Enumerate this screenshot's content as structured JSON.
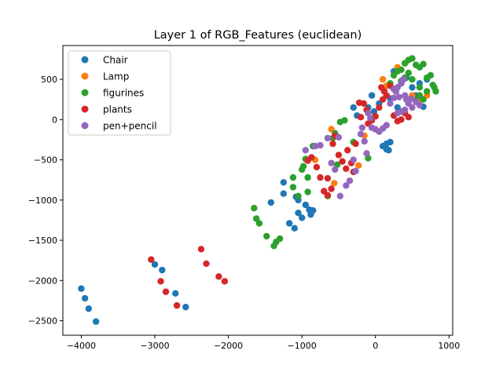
{
  "chart_data": {
    "type": "scatter",
    "title": "Layer 1 of RGB_Features (euclidean)",
    "xlabel": "",
    "ylabel": "",
    "xlim": [
      -4250,
      1050
    ],
    "ylim": [
      -2680,
      920
    ],
    "xticks": [
      -4000,
      -3000,
      -2000,
      -1000,
      0,
      1000
    ],
    "yticks": [
      -2500,
      -2000,
      -1500,
      -1000,
      -500,
      0,
      500
    ],
    "xtick_labels": [
      "−4000",
      "−3000",
      "−2000",
      "−1000",
      "0",
      "1000"
    ],
    "ytick_labels": [
      "−2500",
      "−2000",
      "−1500",
      "−1000",
      "−500",
      "0",
      "500"
    ],
    "grid": false,
    "legend_position": "top-left",
    "series": [
      {
        "name": "Chair",
        "color": "#1f77b4",
        "points": [
          [
            -4000,
            -2100
          ],
          [
            -3950,
            -2220
          ],
          [
            -3900,
            -2350
          ],
          [
            -3800,
            -2510
          ],
          [
            -3000,
            -1800
          ],
          [
            -2900,
            -1870
          ],
          [
            -2720,
            -2160
          ],
          [
            -2580,
            -2330
          ],
          [
            -1420,
            -1030
          ],
          [
            -1250,
            -920
          ],
          [
            -1250,
            -780
          ],
          [
            -1170,
            -1290
          ],
          [
            -1100,
            -1350
          ],
          [
            -1080,
            -960
          ],
          [
            -1050,
            -1000
          ],
          [
            -1050,
            -1160
          ],
          [
            -1000,
            -1220
          ],
          [
            -950,
            -1060
          ],
          [
            -900,
            -1120
          ],
          [
            -880,
            -1180
          ],
          [
            -850,
            -1130
          ],
          [
            -300,
            150
          ],
          [
            -250,
            50
          ],
          [
            -100,
            150
          ],
          [
            -50,
            300
          ],
          [
            -20,
            100
          ],
          [
            50,
            200
          ],
          [
            100,
            -330
          ],
          [
            150,
            -300
          ],
          [
            180,
            -380
          ],
          [
            200,
            -280
          ],
          [
            150,
            -370
          ],
          [
            250,
            600
          ],
          [
            350,
            450
          ],
          [
            420,
            520
          ],
          [
            500,
            400
          ],
          [
            600,
            450
          ],
          [
            700,
            500
          ],
          [
            450,
            250
          ],
          [
            550,
            300
          ],
          [
            650,
            160
          ],
          [
            300,
            150
          ],
          [
            200,
            260
          ]
        ]
      },
      {
        "name": "Lamp",
        "color": "#ff7f0e",
        "points": [
          [
            -820,
            -500
          ],
          [
            -600,
            -120
          ],
          [
            -560,
            -790
          ],
          [
            -230,
            -570
          ],
          [
            -150,
            -200
          ],
          [
            100,
            500
          ],
          [
            150,
            420
          ],
          [
            250,
            380
          ],
          [
            300,
            650
          ],
          [
            400,
            700
          ],
          [
            500,
            300
          ],
          [
            700,
            300
          ],
          [
            600,
            250
          ]
        ]
      },
      {
        "name": "figurines",
        "color": "#2ca02c",
        "points": [
          [
            -1650,
            -1100
          ],
          [
            -1620,
            -1230
          ],
          [
            -1580,
            -1290
          ],
          [
            -1480,
            -1450
          ],
          [
            -1380,
            -1570
          ],
          [
            -1350,
            -1520
          ],
          [
            -1300,
            -1480
          ],
          [
            -1120,
            -720
          ],
          [
            -1120,
            -840
          ],
          [
            -1050,
            -950
          ],
          [
            -1000,
            -620
          ],
          [
            -980,
            -580
          ],
          [
            -950,
            -490
          ],
          [
            -920,
            -720
          ],
          [
            -920,
            -900
          ],
          [
            -850,
            -330
          ],
          [
            -650,
            -950
          ],
          [
            -580,
            -230
          ],
          [
            -550,
            -170
          ],
          [
            -520,
            -560
          ],
          [
            -480,
            -30
          ],
          [
            -420,
            -10
          ],
          [
            -300,
            -280
          ],
          [
            -100,
            -480
          ],
          [
            200,
            450
          ],
          [
            250,
            550
          ],
          [
            300,
            600
          ],
          [
            350,
            620
          ],
          [
            400,
            700
          ],
          [
            450,
            740
          ],
          [
            500,
            760
          ],
          [
            550,
            680
          ],
          [
            600,
            650
          ],
          [
            650,
            690
          ],
          [
            700,
            520
          ],
          [
            750,
            550
          ],
          [
            800,
            400
          ],
          [
            820,
            350
          ],
          [
            780,
            430
          ],
          [
            600,
            400
          ],
          [
            500,
            500
          ],
          [
            450,
            580
          ],
          [
            400,
            520
          ],
          [
            350,
            480
          ],
          [
            550,
            230
          ],
          [
            600,
            300
          ],
          [
            650,
            250
          ],
          [
            700,
            350
          ]
        ]
      },
      {
        "name": "plants",
        "color": "#d62728",
        "points": [
          [
            -3050,
            -1740
          ],
          [
            -2920,
            -2010
          ],
          [
            -2850,
            -2140
          ],
          [
            -2700,
            -2310
          ],
          [
            -2370,
            -1610
          ],
          [
            -2300,
            -1790
          ],
          [
            -2130,
            -1950
          ],
          [
            -2050,
            -2010
          ],
          [
            -920,
            -510
          ],
          [
            -870,
            -470
          ],
          [
            -800,
            -590
          ],
          [
            -750,
            -720
          ],
          [
            -700,
            -890
          ],
          [
            -650,
            -940
          ],
          [
            -650,
            -730
          ],
          [
            -600,
            -860
          ],
          [
            -580,
            -300
          ],
          [
            -550,
            -200
          ],
          [
            -500,
            -440
          ],
          [
            -450,
            -520
          ],
          [
            -400,
            -610
          ],
          [
            -380,
            -380
          ],
          [
            -330,
            -540
          ],
          [
            -300,
            -650
          ],
          [
            -270,
            -300
          ],
          [
            -220,
            210
          ],
          [
            -200,
            30
          ],
          [
            -160,
            200
          ],
          [
            -120,
            120
          ],
          [
            -100,
            -50
          ],
          [
            -50,
            -10
          ],
          [
            0,
            40
          ],
          [
            50,
            150
          ],
          [
            80,
            400
          ],
          [
            100,
            250
          ],
          [
            150,
            300
          ],
          [
            200,
            420
          ],
          [
            250,
            50
          ],
          [
            300,
            -20
          ],
          [
            350,
            0
          ],
          [
            400,
            80
          ],
          [
            450,
            30
          ],
          [
            120,
            350
          ]
        ]
      },
      {
        "name": "pen+pencil",
        "color": "#9467bd",
        "points": [
          [
            -950,
            -380
          ],
          [
            -820,
            -330
          ],
          [
            -750,
            -320
          ],
          [
            -650,
            -230
          ],
          [
            -600,
            -540
          ],
          [
            -550,
            -620
          ],
          [
            -500,
            -220
          ],
          [
            -480,
            -950
          ],
          [
            -400,
            -820
          ],
          [
            -350,
            -760
          ],
          [
            -300,
            -500
          ],
          [
            -270,
            -640
          ],
          [
            -200,
            -180
          ],
          [
            -180,
            -100
          ],
          [
            -150,
            -270
          ],
          [
            -120,
            -420
          ],
          [
            -100,
            80
          ],
          [
            -70,
            20
          ],
          [
            -50,
            -100
          ],
          [
            0,
            -120
          ],
          [
            50,
            -150
          ],
          [
            100,
            -110
          ],
          [
            150,
            -70
          ],
          [
            200,
            200
          ],
          [
            250,
            270
          ],
          [
            280,
            350
          ],
          [
            300,
            400
          ],
          [
            350,
            450
          ],
          [
            380,
            500
          ],
          [
            400,
            300
          ],
          [
            420,
            250
          ],
          [
            450,
            200
          ],
          [
            500,
            150
          ],
          [
            550,
            220
          ],
          [
            600,
            180
          ],
          [
            350,
            100
          ],
          [
            300,
            80
          ],
          [
            400,
            120
          ],
          [
            250,
            380
          ],
          [
            320,
            280
          ],
          [
            480,
            260
          ]
        ]
      }
    ]
  }
}
